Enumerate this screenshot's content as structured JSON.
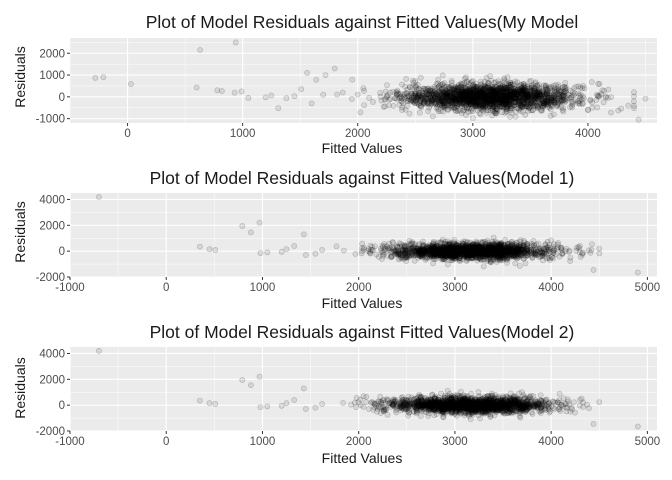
{
  "chart_data": [
    {
      "type": "scatter",
      "title": "Plot of Model Residuals against Fitted Values(My Model",
      "xlabel": "Fitted Values",
      "ylabel": "Residuals",
      "xlim": [
        -500,
        4600
      ],
      "ylim": [
        -1200,
        2700
      ],
      "x_ticks": [
        0,
        1000,
        2000,
        3000,
        4000
      ],
      "x_tick_labels": [
        "0",
        "1000",
        "2000",
        "3000",
        "4000"
      ],
      "y_ticks": [
        -1000,
        0,
        1000,
        2000
      ],
      "y_tick_labels": [
        "-1000",
        "0",
        "1000",
        "2000"
      ],
      "grid": true,
      "point_color": "#000000",
      "point_alpha": 0.1,
      "bulk": {
        "center_x": 3150,
        "center_y": 0,
        "sd_x": 380,
        "sd_y": 300,
        "x_range": [
          1800,
          4400
        ]
      },
      "outliers": [
        {
          "x": -280,
          "y": 870
        },
        {
          "x": -210,
          "y": 900
        },
        {
          "x": 30,
          "y": 590
        },
        {
          "x": 630,
          "y": 2150
        },
        {
          "x": 940,
          "y": 2500
        },
        {
          "x": 600,
          "y": 430
        },
        {
          "x": 780,
          "y": 300
        },
        {
          "x": 820,
          "y": 270
        },
        {
          "x": 930,
          "y": 190
        },
        {
          "x": 990,
          "y": 250
        },
        {
          "x": 1050,
          "y": -50
        },
        {
          "x": 1200,
          "y": -20
        },
        {
          "x": 1250,
          "y": 60
        },
        {
          "x": 1310,
          "y": -520
        },
        {
          "x": 1380,
          "y": -60
        },
        {
          "x": 1450,
          "y": 30
        },
        {
          "x": 1510,
          "y": 350
        },
        {
          "x": 1560,
          "y": 1100
        },
        {
          "x": 1640,
          "y": 780
        },
        {
          "x": 1720,
          "y": 1000
        },
        {
          "x": 1800,
          "y": 1300
        },
        {
          "x": 1870,
          "y": 200
        },
        {
          "x": 1600,
          "y": -300
        },
        {
          "x": 1700,
          "y": 100
        },
        {
          "x": 4200,
          "y": -720
        },
        {
          "x": 4440,
          "y": -1050
        },
        {
          "x": 4500,
          "y": -80
        },
        {
          "x": 4100,
          "y": 600
        }
      ]
    },
    {
      "type": "scatter",
      "title": "Plot of Model Residuals against Fitted Values(Model 1)",
      "xlabel": "Fitted Values",
      "ylabel": "Residuals",
      "xlim": [
        -1000,
        5100
      ],
      "ylim": [
        -2000,
        4500
      ],
      "x_ticks": [
        -1000,
        0,
        1000,
        2000,
        3000,
        4000,
        5000
      ],
      "x_tick_labels": [
        "-1000",
        "0",
        "1000",
        "2000",
        "3000",
        "4000",
        "5000"
      ],
      "y_ticks": [
        -2000,
        0,
        2000,
        4000
      ],
      "y_tick_labels": [
        "-2000",
        "0",
        "2000",
        "4000"
      ],
      "grid": true,
      "point_color": "#000000",
      "point_alpha": 0.1,
      "bulk": {
        "center_x": 3150,
        "center_y": 0,
        "sd_x": 420,
        "sd_y": 320,
        "x_range": [
          1700,
          4500
        ]
      },
      "outliers": [
        {
          "x": -700,
          "y": 4200
        },
        {
          "x": 350,
          "y": 350
        },
        {
          "x": 450,
          "y": 150
        },
        {
          "x": 510,
          "y": 100
        },
        {
          "x": 790,
          "y": 1950
        },
        {
          "x": 880,
          "y": 1450
        },
        {
          "x": 970,
          "y": 2200
        },
        {
          "x": 980,
          "y": -150
        },
        {
          "x": 1050,
          "y": -100
        },
        {
          "x": 1200,
          "y": -50
        },
        {
          "x": 1250,
          "y": 150
        },
        {
          "x": 1330,
          "y": 400
        },
        {
          "x": 1430,
          "y": 1300
        },
        {
          "x": 1450,
          "y": -300
        },
        {
          "x": 1550,
          "y": -200
        },
        {
          "x": 1620,
          "y": 100
        },
        {
          "x": 4200,
          "y": -500
        },
        {
          "x": 4440,
          "y": -1450
        },
        {
          "x": 4900,
          "y": -1650
        },
        {
          "x": 4300,
          "y": 400
        }
      ]
    },
    {
      "type": "scatter",
      "title": "Plot of Model Residuals against Fitted Values(Model 2)",
      "xlabel": "Fitted Values",
      "ylabel": "Residuals",
      "xlim": [
        -1000,
        5100
      ],
      "ylim": [
        -2000,
        4500
      ],
      "x_ticks": [
        -1000,
        0,
        1000,
        2000,
        3000,
        4000,
        5000
      ],
      "x_tick_labels": [
        "-1000",
        "0",
        "1000",
        "2000",
        "3000",
        "4000",
        "5000"
      ],
      "y_ticks": [
        -2000,
        0,
        2000,
        4000
      ],
      "y_tick_labels": [
        "-2000",
        "0",
        "2000",
        "4000"
      ],
      "grid": true,
      "point_color": "#000000",
      "point_alpha": 0.1,
      "bulk": {
        "center_x": 3150,
        "center_y": 0,
        "sd_x": 420,
        "sd_y": 320,
        "x_range": [
          1700,
          4500
        ]
      },
      "outliers": [
        {
          "x": -700,
          "y": 4200
        },
        {
          "x": 350,
          "y": 350
        },
        {
          "x": 450,
          "y": 150
        },
        {
          "x": 510,
          "y": 100
        },
        {
          "x": 790,
          "y": 1950
        },
        {
          "x": 880,
          "y": 1550
        },
        {
          "x": 970,
          "y": 2200
        },
        {
          "x": 980,
          "y": -150
        },
        {
          "x": 1050,
          "y": -100
        },
        {
          "x": 1200,
          "y": -50
        },
        {
          "x": 1250,
          "y": 150
        },
        {
          "x": 1330,
          "y": 400
        },
        {
          "x": 1430,
          "y": 1300
        },
        {
          "x": 1450,
          "y": -300
        },
        {
          "x": 1550,
          "y": -200
        },
        {
          "x": 1620,
          "y": 100
        },
        {
          "x": 4200,
          "y": -500
        },
        {
          "x": 4440,
          "y": -1450
        },
        {
          "x": 4900,
          "y": -1650
        },
        {
          "x": 4300,
          "y": 400
        }
      ]
    }
  ]
}
